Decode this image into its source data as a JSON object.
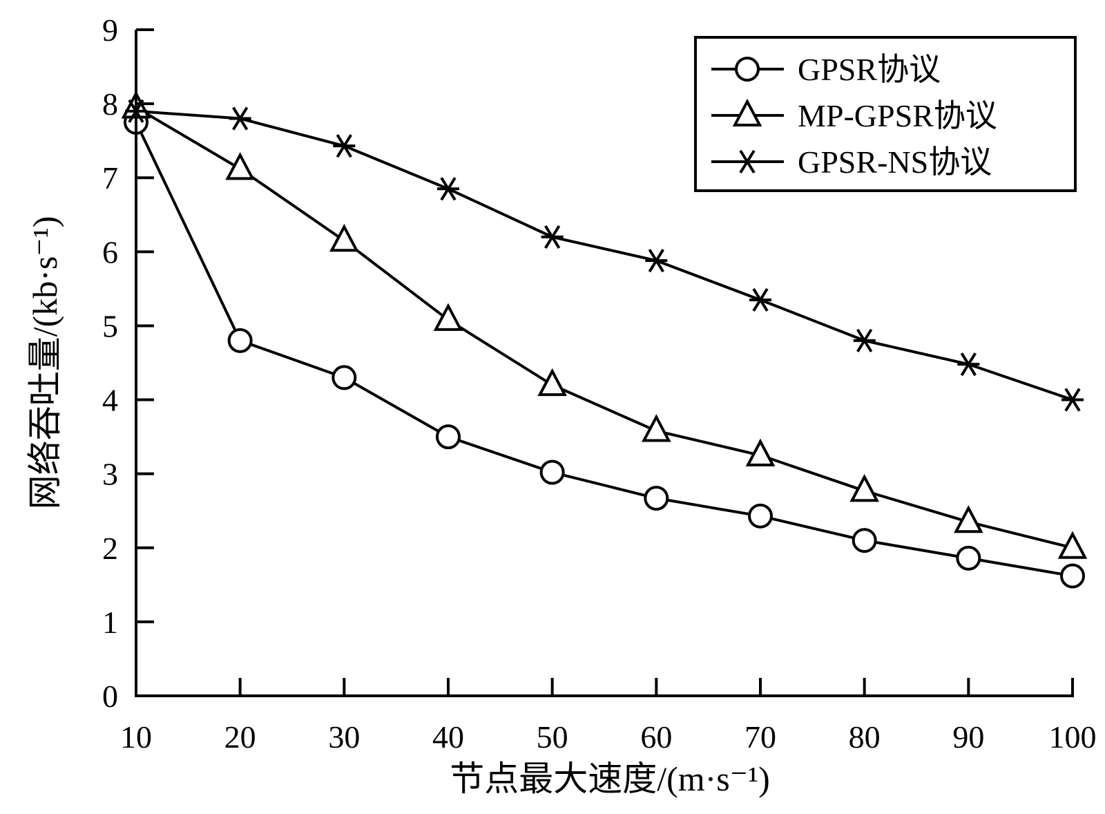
{
  "chart_data": {
    "type": "line",
    "x": [
      10,
      20,
      30,
      40,
      50,
      60,
      70,
      80,
      90,
      100
    ],
    "xlabel": "节点最大速度/(m·s⁻¹)",
    "ylabel": "网络吞吐量/(kb·s⁻¹)",
    "xlim": [
      10,
      100
    ],
    "ylim": [
      0,
      9
    ],
    "xticks": [
      10,
      20,
      30,
      40,
      50,
      60,
      70,
      80,
      90,
      100
    ],
    "yticks": [
      0,
      1,
      2,
      3,
      4,
      5,
      6,
      7,
      8,
      9
    ],
    "grid": false,
    "legend_position": "top-right",
    "series": [
      {
        "name": "GPSR协议",
        "marker": "circle",
        "values": [
          7.75,
          4.8,
          4.3,
          3.5,
          3.02,
          2.67,
          2.43,
          2.1,
          1.86,
          1.62
        ]
      },
      {
        "name": "MP-GPSR协议",
        "marker": "triangle",
        "values": [
          7.95,
          7.12,
          6.15,
          5.08,
          4.2,
          3.58,
          3.25,
          2.77,
          2.35,
          2.0
        ]
      },
      {
        "name": "GPSR-NS协议",
        "marker": "asterisk",
        "values": [
          7.9,
          7.8,
          7.43,
          6.85,
          6.2,
          5.88,
          5.35,
          4.8,
          4.48,
          4.0
        ]
      }
    ]
  }
}
